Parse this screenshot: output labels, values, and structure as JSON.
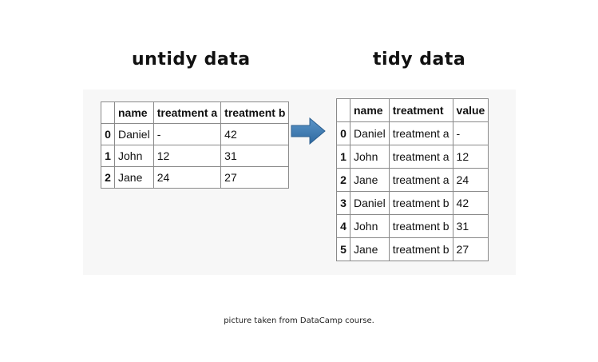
{
  "untidy": {
    "title": "untidy data",
    "columns": [
      "",
      "name",
      "treatment a",
      "treatment b"
    ],
    "rows": [
      [
        "0",
        "Daniel",
        "-",
        "42"
      ],
      [
        "1",
        "John",
        "12",
        "31"
      ],
      [
        "2",
        "Jane",
        "24",
        "27"
      ]
    ]
  },
  "tidy": {
    "title": "tidy data",
    "columns": [
      "",
      "name",
      "treatment",
      "value"
    ],
    "rows": [
      [
        "0",
        "Daniel",
        "treatment a",
        "-"
      ],
      [
        "1",
        "John",
        "treatment a",
        "12"
      ],
      [
        "2",
        "Jane",
        "treatment a",
        "24"
      ],
      [
        "3",
        "Daniel",
        "treatment b",
        "42"
      ],
      [
        "4",
        "John",
        "treatment b",
        "31"
      ],
      [
        "5",
        "Jane",
        "treatment b",
        "27"
      ]
    ]
  },
  "arrow_icon": "right-arrow-icon",
  "arrow_color": "#3a76ad",
  "caption": "picture taken from DataCamp course."
}
